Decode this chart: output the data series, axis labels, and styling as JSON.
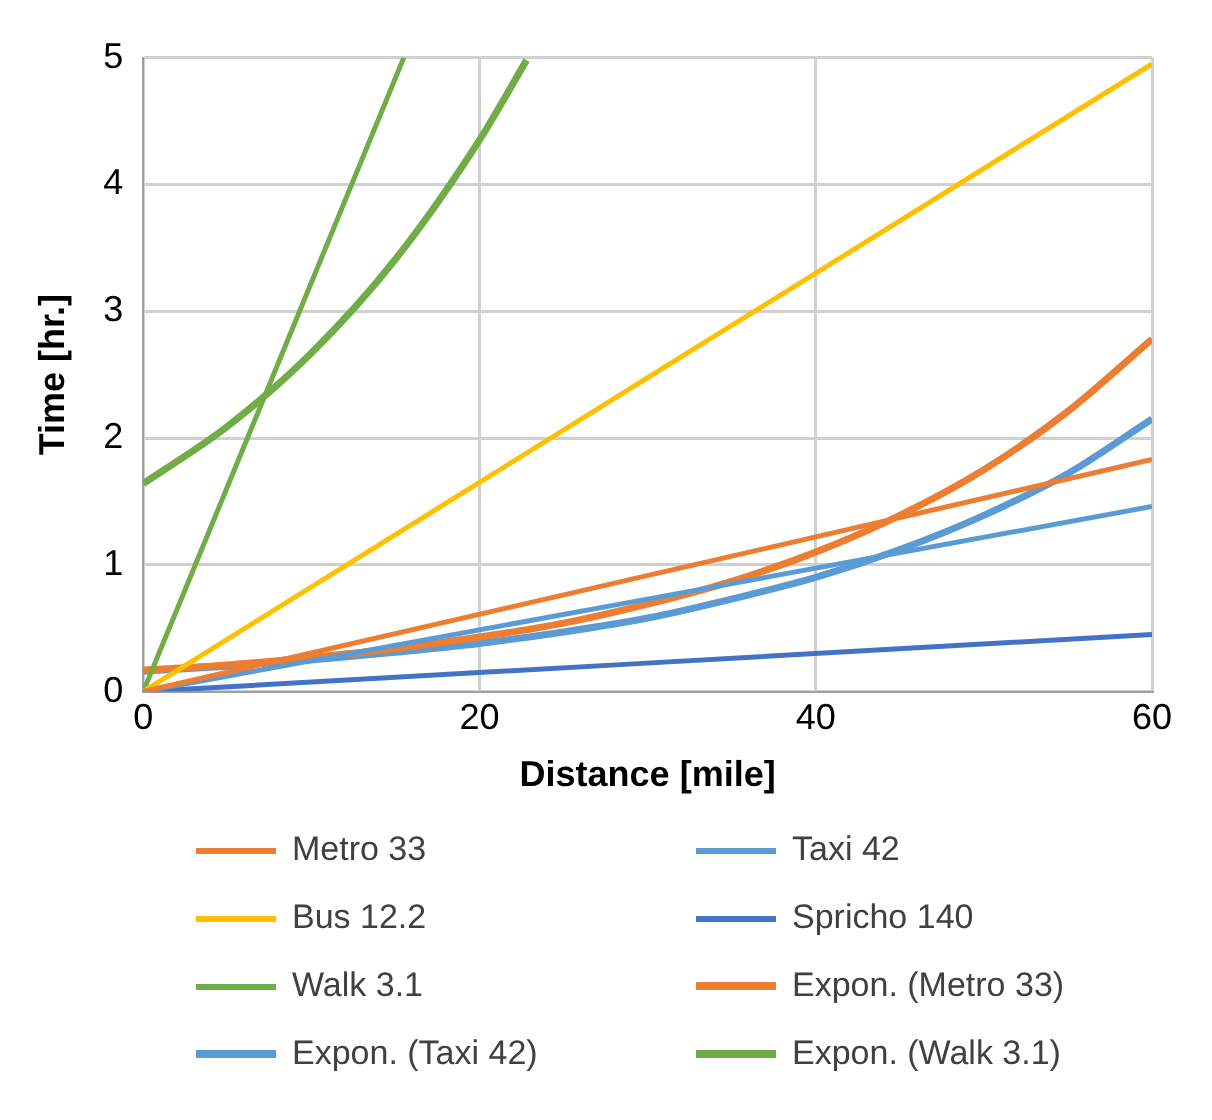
{
  "chart_data": {
    "type": "line",
    "xlabel": "Distance [mile]",
    "ylabel": "Time [hr.]",
    "xlim": [
      0,
      60
    ],
    "xticks": [
      0,
      20,
      40,
      60
    ],
    "ylim": [
      0,
      5
    ],
    "yticks": [
      0,
      1,
      2,
      3,
      4,
      5
    ],
    "grid": true,
    "legend": "bottom",
    "marker": "none",
    "line_style": "solid",
    "series": [
      {
        "name": "Metro 33",
        "color": "#ed7d31",
        "x": [
          0,
          60
        ],
        "values": [
          0,
          1.83
        ]
      },
      {
        "name": "Taxi 42",
        "color": "#5b9bd5",
        "x": [
          0,
          60
        ],
        "values": [
          0,
          1.46
        ]
      },
      {
        "name": "Bus 12.2",
        "color": "#ffc000",
        "x": [
          0,
          60
        ],
        "values": [
          0,
          4.95
        ]
      },
      {
        "name": "Spricho 140",
        "color": "#4472c4",
        "x": [
          0,
          60
        ],
        "values": [
          0,
          0.45
        ]
      },
      {
        "name": "Walk 3.1",
        "color": "#70ad47",
        "x": [
          0,
          15.5
        ],
        "values": [
          0,
          5
        ]
      },
      {
        "name": "Expon. (Metro 33)",
        "color": "#ed7d31",
        "x": [
          0,
          5,
          10,
          15,
          20,
          25,
          30,
          35,
          40,
          45,
          50,
          55,
          60
        ],
        "values": [
          0.17,
          0.21,
          0.27,
          0.34,
          0.43,
          0.54,
          0.69,
          0.87,
          1.1,
          1.39,
          1.75,
          2.21,
          2.78
        ]
      },
      {
        "name": "Expon. (Taxi 42)",
        "color": "#5b9bd5",
        "x": [
          0,
          5,
          10,
          15,
          20,
          25,
          30,
          35,
          40,
          45,
          50,
          55,
          60
        ],
        "values": [
          0.16,
          0.2,
          0.25,
          0.31,
          0.38,
          0.47,
          0.58,
          0.73,
          0.9,
          1.12,
          1.39,
          1.72,
          2.15
        ]
      },
      {
        "name": "Expon. (Walk 3.1)",
        "color": "#70ad47",
        "x": [
          0,
          5,
          10,
          15,
          20,
          22.8
        ],
        "values": [
          1.64,
          2.09,
          2.67,
          3.41,
          4.35,
          4.98
        ]
      }
    ]
  }
}
